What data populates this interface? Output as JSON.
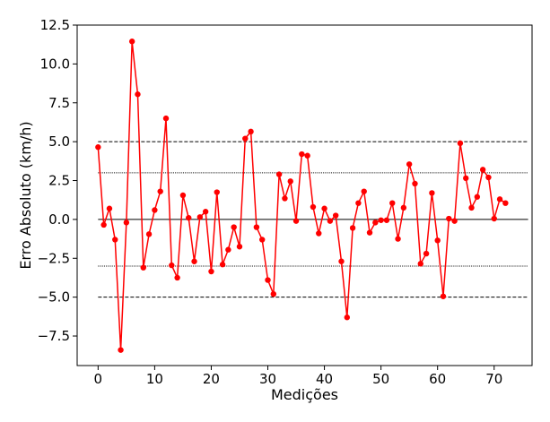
{
  "chart_data": {
    "type": "line",
    "title": "",
    "xlabel": "Medições",
    "ylabel": "Erro Absoluto (km/h)",
    "xlim": [
      -3.7,
      76.7
    ],
    "ylim": [
      -9.4,
      12.5
    ],
    "xticks": [
      0,
      10,
      20,
      30,
      40,
      50,
      60,
      70
    ],
    "xtick_labels": [
      "0",
      "10",
      "20",
      "30",
      "40",
      "50",
      "60",
      "70"
    ],
    "yticks": [
      -7.5,
      -5.0,
      -2.5,
      0.0,
      2.5,
      5.0,
      7.5,
      10.0,
      12.5
    ],
    "ytick_labels": [
      "−7.5",
      "−5.0",
      "−2.5",
      "0.0",
      "2.5",
      "5.0",
      "7.5",
      "10.0",
      "12.5"
    ],
    "grid": false,
    "legend": null,
    "reference_lines": [
      {
        "name": "zero-line",
        "y": 0.0,
        "style": "solid",
        "color": "#000000",
        "x_range": [
          0,
          76
        ]
      },
      {
        "name": "upper-dashed-line",
        "y": 5.0,
        "style": "dashed",
        "color": "#000000",
        "x_range": [
          0,
          76
        ]
      },
      {
        "name": "lower-dashed-line",
        "y": -5.0,
        "style": "dashed",
        "color": "#000000",
        "x_range": [
          0,
          76
        ]
      },
      {
        "name": "upper-dotted-line",
        "y": 3.0,
        "style": "dotted",
        "color": "#000000",
        "x_range": [
          0,
          76
        ]
      },
      {
        "name": "lower-dotted-line",
        "y": -3.0,
        "style": "dotted",
        "color": "#000000",
        "x_range": [
          0,
          76
        ]
      }
    ],
    "series": [
      {
        "name": "erro",
        "color": "#ff0000",
        "marker": "circle",
        "x": [
          0,
          1,
          2,
          3,
          4,
          5,
          6,
          7,
          8,
          9,
          10,
          11,
          12,
          13,
          14,
          15,
          16,
          17,
          18,
          19,
          20,
          21,
          22,
          23,
          24,
          25,
          26,
          27,
          28,
          29,
          30,
          31,
          32,
          33,
          34,
          35,
          36,
          37,
          38,
          39,
          40,
          41,
          42,
          43,
          44,
          45,
          46,
          47,
          48,
          49,
          50,
          51,
          52,
          53,
          54,
          55,
          56,
          57,
          58,
          59,
          60,
          61,
          62,
          63,
          64,
          65,
          66,
          67,
          68,
          69,
          70,
          71,
          72
        ],
        "values": [
          4.65,
          -0.35,
          0.7,
          -1.3,
          -8.4,
          -0.2,
          11.45,
          8.05,
          -3.1,
          -0.95,
          0.6,
          1.8,
          6.5,
          -2.95,
          -3.75,
          1.55,
          0.1,
          -2.7,
          0.15,
          0.5,
          -3.35,
          1.75,
          -2.9,
          -1.95,
          -0.5,
          -1.75,
          5.2,
          5.65,
          -0.5,
          -1.3,
          -3.9,
          -4.8,
          2.9,
          1.35,
          2.45,
          -0.1,
          4.2,
          4.1,
          0.8,
          -0.9,
          0.7,
          -0.1,
          0.25,
          -2.7,
          -6.3,
          -0.55,
          1.05,
          1.8,
          -0.85,
          -0.2,
          -0.05,
          -0.05,
          1.05,
          -1.25,
          0.75,
          3.55,
          2.3,
          -2.85,
          -2.2,
          1.7,
          -1.35,
          -4.95,
          0.05,
          -0.1,
          4.9,
          2.65,
          0.75,
          1.45,
          3.2,
          2.7,
          0.05,
          1.3,
          1.05
        ]
      }
    ]
  }
}
